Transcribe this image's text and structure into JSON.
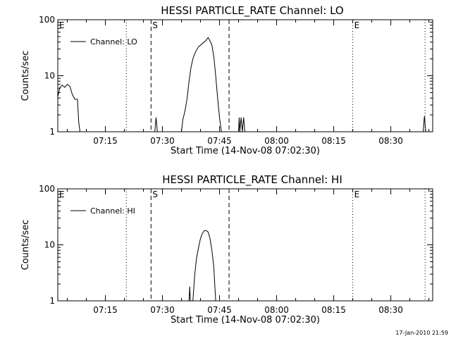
{
  "chart_data": [
    {
      "type": "line",
      "title": "HESSI PARTICLE_RATE Channel: LO",
      "xlabel": "Start Time (14-Nov-08 07:02:30)",
      "ylabel": "Counts/sec",
      "xlim": [
        "07:02:30",
        "08:41:00"
      ],
      "ylim": [
        1,
        100
      ],
      "yscale": "log",
      "grid": false,
      "legend": "top-left",
      "x_ticks": [
        "07:15",
        "07:30",
        "07:45",
        "08:00",
        "08:15",
        "08:30"
      ],
      "y_ticks": [
        "1",
        "10",
        "100"
      ],
      "markers": [
        {
          "label": "E",
          "time": "07:02:30",
          "style": "none"
        },
        {
          "label": "",
          "time": "07:20:30",
          "style": "dotted"
        },
        {
          "label": "S",
          "time": "07:27:00",
          "style": "dashed"
        },
        {
          "label": "",
          "time": "07:47:30",
          "style": "dashed"
        },
        {
          "label": "E",
          "time": "08:20:00",
          "style": "dotted"
        },
        {
          "label": "",
          "time": "08:39:00",
          "style": "dotted"
        }
      ],
      "series": [
        {
          "name": "Channel: LO",
          "segments": [
            [
              [
                "07:02:30",
                4.2
              ],
              [
                "07:03:00",
                6.0
              ],
              [
                "07:03:40",
                6.8
              ],
              [
                "07:04:20",
                6.2
              ],
              [
                "07:05:00",
                7.0
              ],
              [
                "07:05:40",
                6.5
              ],
              [
                "07:06:20",
                4.6
              ],
              [
                "07:07:00",
                3.8
              ],
              [
                "07:07:40",
                3.8
              ],
              [
                "07:08:00",
                1.5
              ],
              [
                "07:08:20",
                1.0
              ]
            ],
            [
              [
                "07:28:00",
                1.0
              ],
              [
                "07:28:20",
                1.8
              ],
              [
                "07:28:40",
                1.0
              ]
            ],
            [
              [
                "07:35:00",
                1.0
              ],
              [
                "07:35:20",
                1.6
              ],
              [
                "07:35:40",
                2.0
              ],
              [
                "07:36:00",
                2.5
              ],
              [
                "07:36:30",
                4.0
              ],
              [
                "07:37:00",
                8.0
              ],
              [
                "07:37:30",
                14.0
              ],
              [
                "07:38:00",
                20.0
              ],
              [
                "07:38:30",
                25.0
              ],
              [
                "07:39:00",
                29.0
              ],
              [
                "07:39:30",
                33.0
              ],
              [
                "07:40:00",
                35.0
              ],
              [
                "07:40:30",
                38.0
              ],
              [
                "07:41:00",
                40.0
              ],
              [
                "07:41:30",
                43.0
              ],
              [
                "07:42:00",
                48.0
              ],
              [
                "07:42:30",
                42.0
              ],
              [
                "07:43:00",
                35.0
              ],
              [
                "07:43:30",
                22.0
              ],
              [
                "07:44:00",
                10.0
              ],
              [
                "07:44:30",
                4.0
              ],
              [
                "07:45:00",
                1.8
              ],
              [
                "07:45:30",
                1.0
              ]
            ],
            [
              [
                "07:50:00",
                1.0
              ],
              [
                "07:50:10",
                1.8
              ],
              [
                "07:50:20",
                1.0
              ],
              [
                "07:50:40",
                1.8
              ],
              [
                "07:51:00",
                1.0
              ],
              [
                "07:51:20",
                1.8
              ],
              [
                "07:51:40",
                1.0
              ]
            ],
            [
              [
                "08:38:30",
                1.0
              ],
              [
                "08:38:50",
                1.9
              ],
              [
                "08:39:10",
                1.0
              ]
            ]
          ]
        }
      ]
    },
    {
      "type": "line",
      "title": "HESSI PARTICLE_RATE Channel: HI",
      "xlabel": "Start Time (14-Nov-08 07:02:30)",
      "ylabel": "Counts/sec",
      "xlim": [
        "07:02:30",
        "08:41:00"
      ],
      "ylim": [
        1,
        100
      ],
      "yscale": "log",
      "grid": false,
      "legend": "top-left",
      "x_ticks": [
        "07:15",
        "07:30",
        "07:45",
        "08:00",
        "08:15",
        "08:30"
      ],
      "y_ticks": [
        "1",
        "10",
        "100"
      ],
      "markers": [
        {
          "label": "E",
          "time": "07:02:30",
          "style": "none"
        },
        {
          "label": "",
          "time": "07:20:30",
          "style": "dotted"
        },
        {
          "label": "S",
          "time": "07:27:00",
          "style": "dashed"
        },
        {
          "label": "",
          "time": "07:47:30",
          "style": "dashed"
        },
        {
          "label": "E",
          "time": "08:20:00",
          "style": "dotted"
        },
        {
          "label": "",
          "time": "08:39:00",
          "style": "dotted"
        }
      ],
      "series": [
        {
          "name": "Channel: HI",
          "segments": [
            [
              [
                "07:37:00",
                1.0
              ],
              [
                "07:37:10",
                1.8
              ],
              [
                "07:37:20",
                1.0
              ]
            ],
            [
              [
                "07:38:00",
                1.0
              ],
              [
                "07:38:30",
                3.0
              ],
              [
                "07:39:00",
                6.0
              ],
              [
                "07:39:30",
                9.0
              ],
              [
                "07:40:00",
                13.0
              ],
              [
                "07:40:30",
                16.0
              ],
              [
                "07:41:00",
                18.0
              ],
              [
                "07:41:30",
                18.0
              ],
              [
                "07:42:00",
                17.0
              ],
              [
                "07:42:30",
                13.0
              ],
              [
                "07:43:00",
                8.0
              ],
              [
                "07:43:30",
                4.0
              ],
              [
                "07:44:00",
                1.0
              ]
            ]
          ]
        }
      ]
    }
  ],
  "footer": {
    "timestamp": "17-Jan-2010 21:59"
  }
}
